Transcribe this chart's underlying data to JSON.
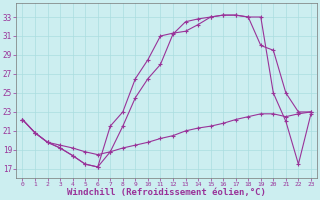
{
  "background_color": "#cceef0",
  "grid_color": "#aadddf",
  "line_color": "#993399",
  "xlabel": "Windchill (Refroidissement éolien,°C)",
  "yticks": [
    17,
    19,
    21,
    23,
    25,
    27,
    29,
    31,
    33
  ],
  "xticks": [
    0,
    1,
    2,
    3,
    4,
    5,
    6,
    7,
    8,
    9,
    10,
    11,
    12,
    13,
    14,
    15,
    16,
    17,
    18,
    19,
    20,
    21,
    22,
    23
  ],
  "xlim": [
    -0.5,
    23.5
  ],
  "ylim": [
    16.0,
    34.5
  ],
  "line1_x": [
    0,
    1,
    2,
    3,
    4,
    5,
    6,
    7,
    8,
    9,
    10,
    11,
    12,
    13,
    14,
    15,
    16,
    17,
    18,
    19,
    20,
    21,
    22,
    23
  ],
  "line1_y": [
    22.2,
    20.8,
    19.8,
    19.2,
    18.4,
    17.5,
    17.2,
    21.5,
    23.0,
    26.5,
    28.5,
    31.0,
    31.3,
    31.5,
    32.2,
    33.0,
    33.2,
    33.2,
    33.0,
    33.0,
    25.0,
    22.0,
    17.5,
    22.8
  ],
  "line2_x": [
    0,
    1,
    2,
    3,
    4,
    5,
    6,
    7,
    8,
    9,
    10,
    11,
    12,
    13,
    14,
    15,
    16,
    17,
    18,
    19,
    20,
    21,
    22,
    23
  ],
  "line2_y": [
    22.2,
    20.8,
    19.8,
    19.2,
    18.4,
    17.5,
    17.2,
    18.8,
    21.5,
    24.5,
    26.5,
    28.0,
    31.2,
    32.5,
    32.8,
    33.0,
    33.2,
    33.2,
    33.0,
    30.0,
    29.5,
    25.0,
    23.0,
    23.0
  ],
  "line3_x": [
    0,
    1,
    2,
    3,
    4,
    5,
    6,
    7,
    8,
    9,
    10,
    11,
    12,
    13,
    14,
    15,
    16,
    17,
    18,
    19,
    20,
    21,
    22,
    23
  ],
  "line3_y": [
    22.2,
    20.8,
    19.8,
    19.5,
    19.2,
    18.8,
    18.5,
    18.8,
    19.2,
    19.5,
    19.8,
    20.2,
    20.5,
    21.0,
    21.3,
    21.5,
    21.8,
    22.2,
    22.5,
    22.8,
    22.8,
    22.5,
    22.8,
    23.0
  ]
}
